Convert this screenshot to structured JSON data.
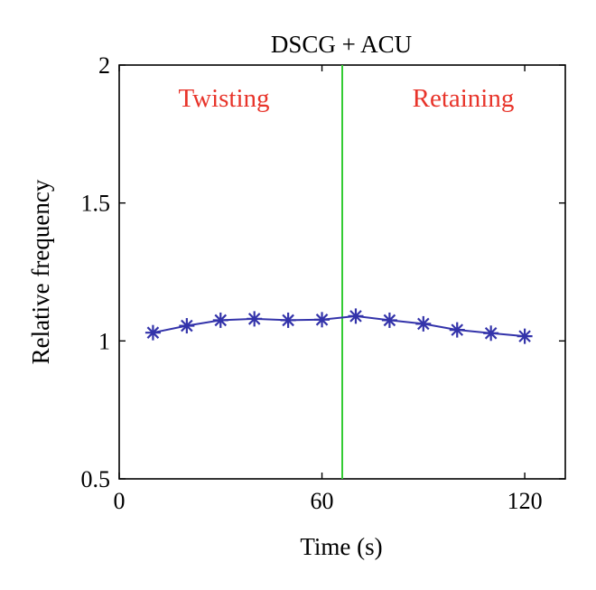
{
  "chart_data": {
    "type": "line",
    "title": "DSCG + ACU",
    "xlabel": "Time (s)",
    "ylabel": "Relative frequency",
    "xlim": [
      0,
      132
    ],
    "ylim": [
      0.5,
      2
    ],
    "xticks": [
      0,
      60,
      120
    ],
    "xtick_labels": [
      "0",
      "60",
      "120"
    ],
    "yticks": [
      0.5,
      1,
      1.5,
      2
    ],
    "ytick_labels": [
      "0.5",
      "1",
      "1.5",
      "2"
    ],
    "grid": false,
    "legend": "none",
    "series": [
      {
        "marker": "asterisk",
        "color": "#3333aa",
        "x": [
          10,
          20,
          30,
          40,
          50,
          60,
          70,
          80,
          90,
          100,
          110,
          120
        ],
        "y": [
          1.03,
          1.055,
          1.075,
          1.08,
          1.075,
          1.077,
          1.09,
          1.075,
          1.062,
          1.04,
          1.028,
          1.017
        ]
      }
    ],
    "vertical_line": {
      "x": 66,
      "color": "#33cc33"
    },
    "annotations": [
      {
        "text": "Twisting",
        "color": "#e8342a"
      },
      {
        "text": "Retaining",
        "color": "#e8342a"
      }
    ]
  }
}
